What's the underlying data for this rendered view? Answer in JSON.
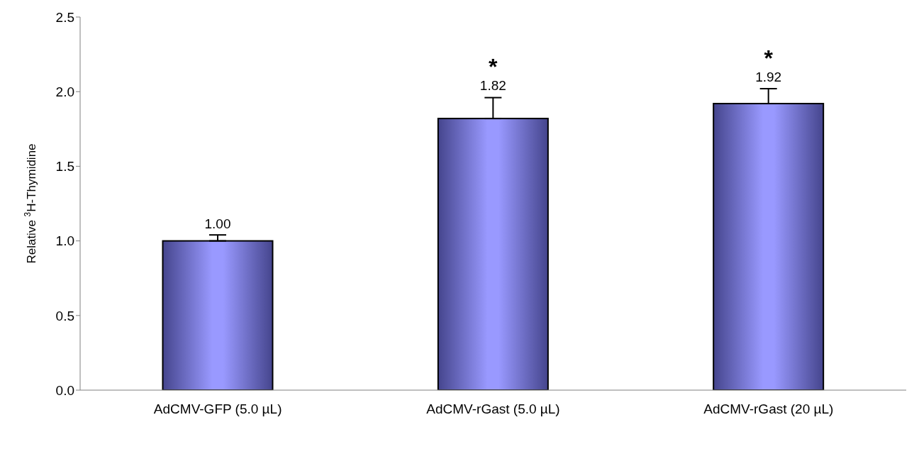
{
  "chart_data": {
    "type": "bar",
    "ylabel": "Relative $^{3}$H-Thymidine",
    "categories": [
      "AdCMV-GFP (5.0 µL)",
      "AdCMV-rGast (5.0 µL)",
      "AdCMV-rGast (20 µL)"
    ],
    "values": [
      1.0,
      1.82,
      1.92
    ],
    "value_labels": [
      "1.00",
      "1.82",
      "1.92"
    ],
    "errors": [
      [
        1.0,
        1.04
      ],
      [
        1.82,
        1.96
      ],
      [
        1.92,
        2.02
      ]
    ],
    "color": "#9999ff",
    "ylim": [
      0,
      2.5
    ],
    "yticks": [
      {
        "value": 0,
        "label": "0.0"
      },
      {
        "value": 0.5,
        "label": "0.5"
      },
      {
        "value": 1,
        "label": "1.0"
      },
      {
        "value": 1.5,
        "label": "1.5"
      },
      {
        "value": 2,
        "label": "2.0"
      },
      {
        "value": 2.5,
        "label": "2.5"
      }
    ],
    "grid": false,
    "legend": false,
    "annotations": [
      "*",
      "*"
    ]
  }
}
